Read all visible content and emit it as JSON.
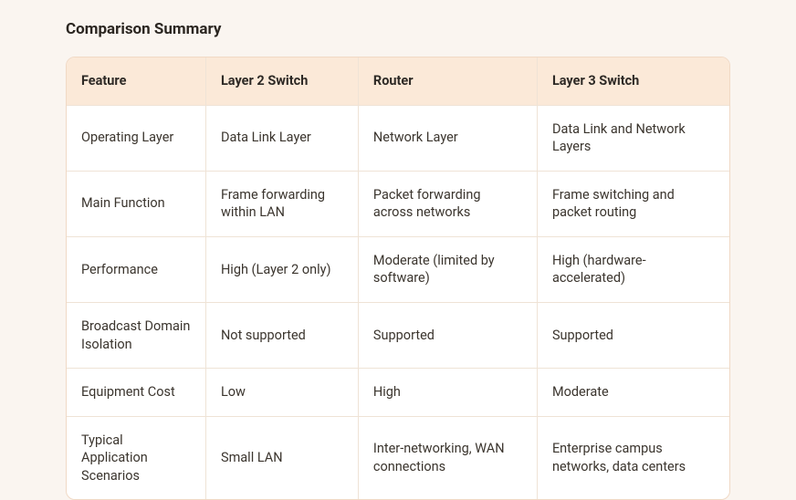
{
  "title": "Comparison Summary",
  "columns": [
    "Feature",
    "Layer 2 Switch",
    "Router",
    "Layer 3 Switch"
  ],
  "rows": [
    [
      "Operating Layer",
      "Data Link Layer",
      "Network Layer",
      "Data Link and Network Layers"
    ],
    [
      "Main Function",
      "Frame forwarding within LAN",
      "Packet forwarding across networks",
      "Frame switching and packet routing"
    ],
    [
      "Performance",
      "High (Layer 2 only)",
      "Moderate (limited by software)",
      "High (hardware-accelerated)"
    ],
    [
      "Broadcast Domain Isolation",
      "Not supported",
      "Supported",
      "Supported"
    ],
    [
      "Equipment Cost",
      "Low",
      "High",
      "Moderate"
    ],
    [
      "Typical Application Scenarios",
      "Small LAN",
      "Inter-networking, WAN connections",
      "Enterprise campus networks, data centers"
    ]
  ],
  "style": {
    "page_bg": "#FAF5F0",
    "header_bg": "#FBE9D8",
    "border_color": "#EFE3D6",
    "outer_border_color": "#F0D9C5",
    "text_color": "#3B352E",
    "title_color": "#2B2621",
    "title_fontsize": 17,
    "cell_fontsize": 14.5,
    "border_radius": 10,
    "col_widths_pct": [
      21,
      23,
      27,
      29
    ]
  }
}
